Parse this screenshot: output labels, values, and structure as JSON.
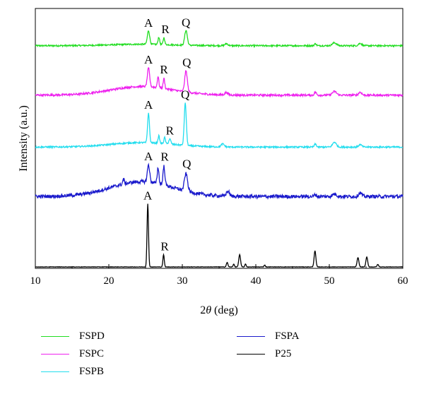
{
  "chart_data": {
    "type": "line",
    "xlabel_prefix": "2",
    "xlabel_theta": "θ",
    "xlabel_suffix": " (deg)",
    "ylabel": "Intensity (a.u.)",
    "xlim": [
      10,
      60
    ],
    "xticks": [
      10,
      20,
      30,
      40,
      50,
      60
    ],
    "yticks_shown": false,
    "legend_position": "bottom",
    "series": [
      {
        "name": "FSPD",
        "color": "#22dd22",
        "baseline": 0.895,
        "hump": 0.006,
        "noise": 0.003,
        "peaks": [
          [
            25.4,
            0.055,
            0.22
          ],
          [
            26.8,
            0.03,
            0.15
          ],
          [
            27.5,
            0.028,
            0.15
          ],
          [
            30.5,
            0.06,
            0.25
          ],
          [
            36.0,
            0.008,
            0.3
          ],
          [
            48.1,
            0.008,
            0.2
          ],
          [
            50.7,
            0.012,
            0.4
          ],
          [
            54.2,
            0.01,
            0.3
          ]
        ],
        "annotations": [
          {
            "text": "A",
            "x": 25.4
          },
          {
            "text": "R",
            "x": 27.7
          },
          {
            "text": "Q",
            "x": 30.5
          }
        ]
      },
      {
        "name": "FSPC",
        "color": "#ee22ee",
        "baseline": 0.695,
        "hump": 0.035,
        "noise": 0.004,
        "peaks": [
          [
            25.4,
            0.075,
            0.22
          ],
          [
            26.7,
            0.045,
            0.15
          ],
          [
            27.5,
            0.04,
            0.15
          ],
          [
            30.5,
            0.085,
            0.25
          ],
          [
            36.0,
            0.01,
            0.3
          ],
          [
            48.1,
            0.012,
            0.2
          ],
          [
            50.7,
            0.015,
            0.4
          ],
          [
            54.2,
            0.012,
            0.3
          ]
        ],
        "annotations": [
          {
            "text": "A",
            "x": 25.4
          },
          {
            "text": "R",
            "x": 27.5
          },
          {
            "text": "Q",
            "x": 30.6
          }
        ]
      },
      {
        "name": "FSPB",
        "color": "#22ddee",
        "baseline": 0.485,
        "hump": 0.018,
        "noise": 0.003,
        "peaks": [
          [
            25.4,
            0.12,
            0.18
          ],
          [
            26.8,
            0.03,
            0.15
          ],
          [
            27.6,
            0.025,
            0.15
          ],
          [
            28.3,
            0.02,
            0.2
          ],
          [
            30.4,
            0.17,
            0.2
          ],
          [
            35.5,
            0.012,
            0.3
          ],
          [
            48.1,
            0.012,
            0.2
          ],
          [
            50.7,
            0.02,
            0.35
          ],
          [
            54.2,
            0.01,
            0.3
          ]
        ],
        "annotations": [
          {
            "text": "A",
            "x": 25.4
          },
          {
            "text": "R",
            "x": 28.3
          },
          {
            "text": "Q",
            "x": 30.4
          }
        ]
      },
      {
        "name": "FSPA",
        "color": "#1a1acc",
        "baseline": 0.285,
        "hump": 0.06,
        "noise": 0.007,
        "peaks": [
          [
            22.0,
            0.02,
            0.15
          ],
          [
            25.4,
            0.07,
            0.22
          ],
          [
            26.7,
            0.065,
            0.16
          ],
          [
            27.5,
            0.075,
            0.18
          ],
          [
            30.5,
            0.07,
            0.3
          ],
          [
            36.2,
            0.02,
            0.3
          ],
          [
            48.1,
            0.008,
            0.2
          ],
          [
            50.7,
            0.01,
            0.4
          ],
          [
            54.2,
            0.015,
            0.3
          ]
        ],
        "annotations": [
          {
            "text": "A",
            "x": 25.4
          },
          {
            "text": "R",
            "x": 27.6
          },
          {
            "text": "Q",
            "x": 30.6
          }
        ]
      },
      {
        "name": "P25",
        "color": "#000000",
        "baseline": 0.0,
        "hump": 0.0,
        "noise": 0.0008,
        "peaks": [
          [
            25.3,
            0.255,
            0.14
          ],
          [
            27.45,
            0.05,
            0.13
          ],
          [
            36.1,
            0.018,
            0.15
          ],
          [
            37.0,
            0.012,
            0.12
          ],
          [
            37.8,
            0.05,
            0.17
          ],
          [
            38.6,
            0.012,
            0.12
          ],
          [
            41.2,
            0.008,
            0.12
          ],
          [
            48.05,
            0.065,
            0.17
          ],
          [
            53.9,
            0.038,
            0.17
          ],
          [
            55.1,
            0.04,
            0.17
          ],
          [
            56.6,
            0.01,
            0.15
          ]
        ],
        "annotations": [
          {
            "text": "A",
            "x": 25.3
          },
          {
            "text": "R",
            "x": 27.6
          }
        ]
      }
    ]
  }
}
